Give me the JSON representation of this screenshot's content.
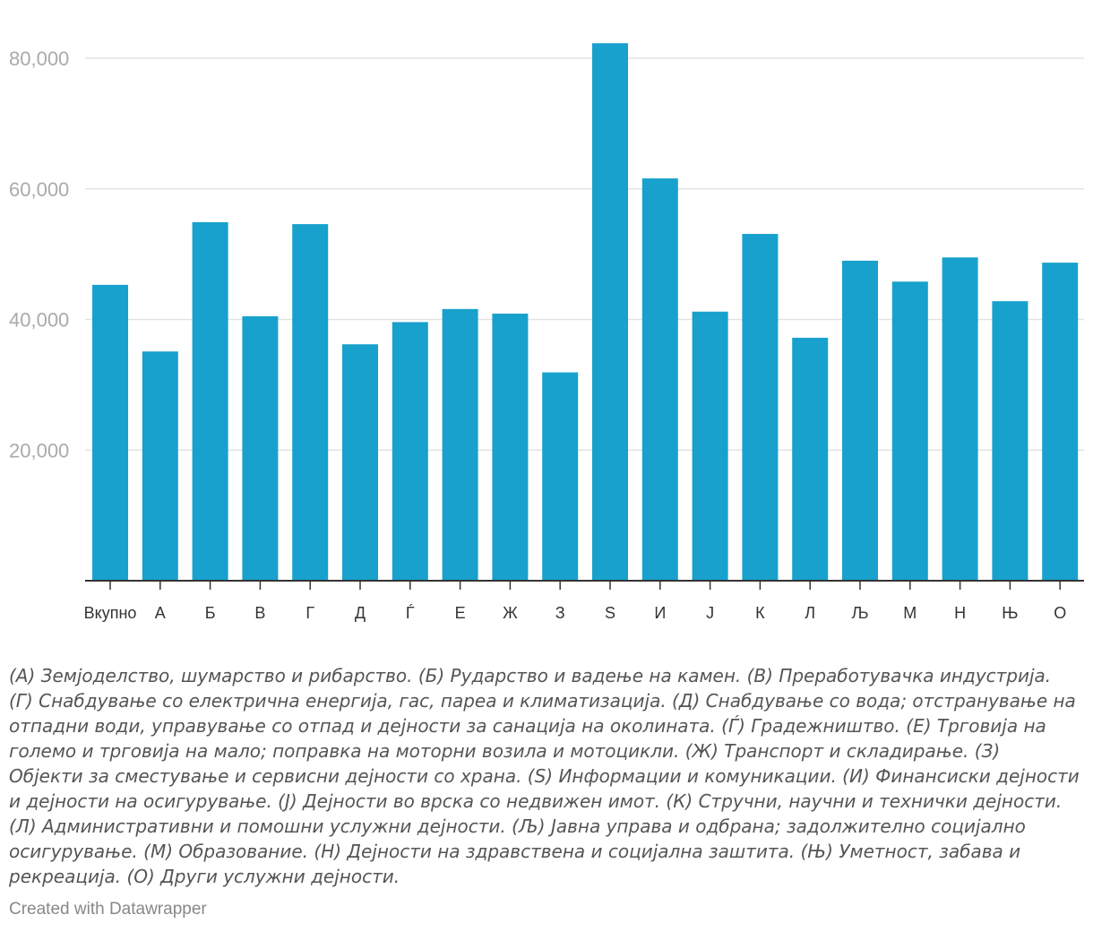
{
  "chart_data": {
    "type": "bar",
    "categories": [
      "Вкупно",
      "А",
      "Б",
      "В",
      "Г",
      "Д",
      "Ѓ",
      "Е",
      "Ж",
      "З",
      "S",
      "И",
      "Ј",
      "К",
      "Л",
      "Љ",
      "М",
      "Н",
      "Њ",
      "О"
    ],
    "values": [
      45300,
      35100,
      54900,
      40500,
      54600,
      36200,
      39600,
      41600,
      40900,
      31900,
      82300,
      61600,
      41200,
      53100,
      37200,
      49000,
      45800,
      49500,
      42800,
      48700
    ],
    "yticks": [
      20000,
      40000,
      60000,
      80000
    ],
    "ytick_labels": [
      "20,000",
      "40,000",
      "60,000",
      "80,000"
    ],
    "ylim": [
      0,
      85000
    ],
    "grid": true,
    "bar_color": "#18a1cd"
  },
  "notes": "(А) Земјоделство, шумарство и рибарство. (Б) Рударство и вадење на камен. (В) Преработувачка индустрија. (Г) Снабдување со електрична енергија, гас, пареа и климатизација. (Д) Снабдување со вода; отстранување на отпадни води, управување со отпад и дејности за санација на околината. (Ѓ) Градежништво. (Е) Трговија на големо и трговија на мало; поправка на моторни возила и мотоцикли. (Ж) Транспорт и складирање. (З) Објекти за сместување и сервисни дејности со храна. (S) Информации и комуникации. (И) Финансиски дејности и дејности на осигурување. (Ј) Дејности во врска со недвижен имот. (К) Стручни, научни и технички дејности. (Л) Административни и помошни услужни дејности. (Љ) Јавна управа и одбрана; задолжително социјално осигурување. (М) Образование. (Н) Дејности на здравствена и социјална заштита. (Њ) Уметност, забава и рекреација. (О) Други услужни дејности.",
  "credit": "Created with Datawrapper"
}
